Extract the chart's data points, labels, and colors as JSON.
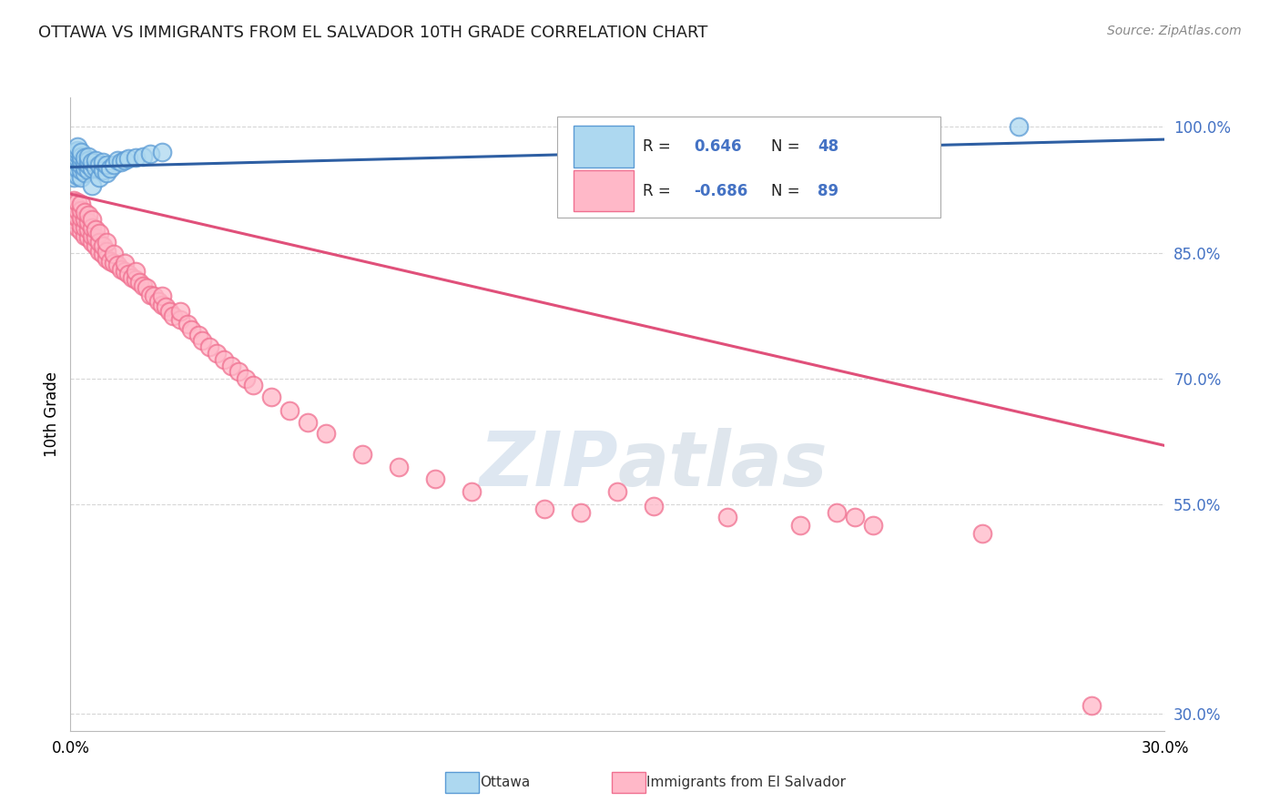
{
  "title": "OTTAWA VS IMMIGRANTS FROM EL SALVADOR 10TH GRADE CORRELATION CHART",
  "source": "Source: ZipAtlas.com",
  "ylabel": "10th Grade",
  "ottawa_R": 0.646,
  "ottawa_N": 48,
  "salvador_R": -0.686,
  "salvador_N": 89,
  "ottawa_color": "#ADD8F0",
  "ottawa_edge_color": "#5B9BD5",
  "ottawa_line_color": "#2E5FA3",
  "salvador_color": "#FFB8C8",
  "salvador_edge_color": "#F07090",
  "salvador_line_color": "#E0507A",
  "legend_blue_color": "#4472C4",
  "background_color": "#FFFFFF",
  "grid_color": "#CCCCCC",
  "watermark_color": "#C8D8E8",
  "title_color": "#1F1F1F",
  "source_color": "#888888",
  "ytick_color": "#4472C4",
  "xlim": [
    0.0,
    0.3
  ],
  "ylim": [
    0.28,
    1.035
  ],
  "yticks": [
    0.3,
    0.55,
    0.7,
    0.85,
    1.0
  ],
  "ottawa_trend_x": [
    0.0,
    0.3
  ],
  "ottawa_trend_y": [
    0.952,
    0.985
  ],
  "salvador_trend_x": [
    0.0,
    0.3
  ],
  "salvador_trend_y": [
    0.92,
    0.62
  ],
  "ottawa_points_x": [
    0.001,
    0.001,
    0.001,
    0.001,
    0.001,
    0.002,
    0.002,
    0.002,
    0.002,
    0.002,
    0.002,
    0.002,
    0.003,
    0.003,
    0.003,
    0.003,
    0.003,
    0.003,
    0.004,
    0.004,
    0.004,
    0.004,
    0.005,
    0.005,
    0.005,
    0.005,
    0.006,
    0.006,
    0.006,
    0.007,
    0.007,
    0.008,
    0.008,
    0.009,
    0.009,
    0.01,
    0.01,
    0.011,
    0.012,
    0.013,
    0.014,
    0.015,
    0.016,
    0.018,
    0.02,
    0.022,
    0.025,
    0.26
  ],
  "ottawa_points_y": [
    0.94,
    0.952,
    0.96,
    0.965,
    0.97,
    0.942,
    0.95,
    0.958,
    0.962,
    0.968,
    0.972,
    0.976,
    0.94,
    0.948,
    0.955,
    0.96,
    0.965,
    0.97,
    0.945,
    0.952,
    0.958,
    0.963,
    0.948,
    0.955,
    0.96,
    0.965,
    0.93,
    0.95,
    0.958,
    0.952,
    0.96,
    0.94,
    0.955,
    0.948,
    0.958,
    0.945,
    0.955,
    0.95,
    0.955,
    0.96,
    0.958,
    0.96,
    0.962,
    0.963,
    0.965,
    0.968,
    0.97,
    1.0
  ],
  "salvador_points_x": [
    0.001,
    0.001,
    0.001,
    0.002,
    0.002,
    0.002,
    0.002,
    0.003,
    0.003,
    0.003,
    0.003,
    0.003,
    0.004,
    0.004,
    0.004,
    0.004,
    0.005,
    0.005,
    0.005,
    0.005,
    0.006,
    0.006,
    0.006,
    0.006,
    0.007,
    0.007,
    0.007,
    0.008,
    0.008,
    0.008,
    0.009,
    0.009,
    0.01,
    0.01,
    0.01,
    0.011,
    0.012,
    0.012,
    0.013,
    0.014,
    0.015,
    0.015,
    0.016,
    0.017,
    0.018,
    0.018,
    0.019,
    0.02,
    0.021,
    0.022,
    0.023,
    0.024,
    0.025,
    0.025,
    0.026,
    0.027,
    0.028,
    0.03,
    0.03,
    0.032,
    0.033,
    0.035,
    0.036,
    0.038,
    0.04,
    0.042,
    0.044,
    0.046,
    0.048,
    0.05,
    0.055,
    0.06,
    0.065,
    0.07,
    0.08,
    0.09,
    0.1,
    0.11,
    0.13,
    0.14,
    0.15,
    0.16,
    0.18,
    0.2,
    0.21,
    0.215,
    0.22,
    0.25,
    0.28
  ],
  "salvador_points_y": [
    0.9,
    0.89,
    0.912,
    0.88,
    0.892,
    0.9,
    0.91,
    0.875,
    0.882,
    0.892,
    0.9,
    0.908,
    0.87,
    0.88,
    0.89,
    0.898,
    0.868,
    0.878,
    0.886,
    0.895,
    0.862,
    0.87,
    0.88,
    0.89,
    0.858,
    0.868,
    0.878,
    0.852,
    0.862,
    0.873,
    0.848,
    0.858,
    0.843,
    0.852,
    0.862,
    0.84,
    0.838,
    0.848,
    0.835,
    0.83,
    0.828,
    0.838,
    0.825,
    0.82,
    0.818,
    0.828,
    0.815,
    0.81,
    0.808,
    0.8,
    0.798,
    0.792,
    0.788,
    0.798,
    0.785,
    0.78,
    0.775,
    0.77,
    0.78,
    0.765,
    0.758,
    0.752,
    0.745,
    0.738,
    0.73,
    0.722,
    0.715,
    0.708,
    0.7,
    0.692,
    0.678,
    0.662,
    0.648,
    0.635,
    0.61,
    0.595,
    0.58,
    0.565,
    0.545,
    0.54,
    0.565,
    0.548,
    0.535,
    0.525,
    0.54,
    0.535,
    0.525,
    0.515,
    0.31
  ]
}
